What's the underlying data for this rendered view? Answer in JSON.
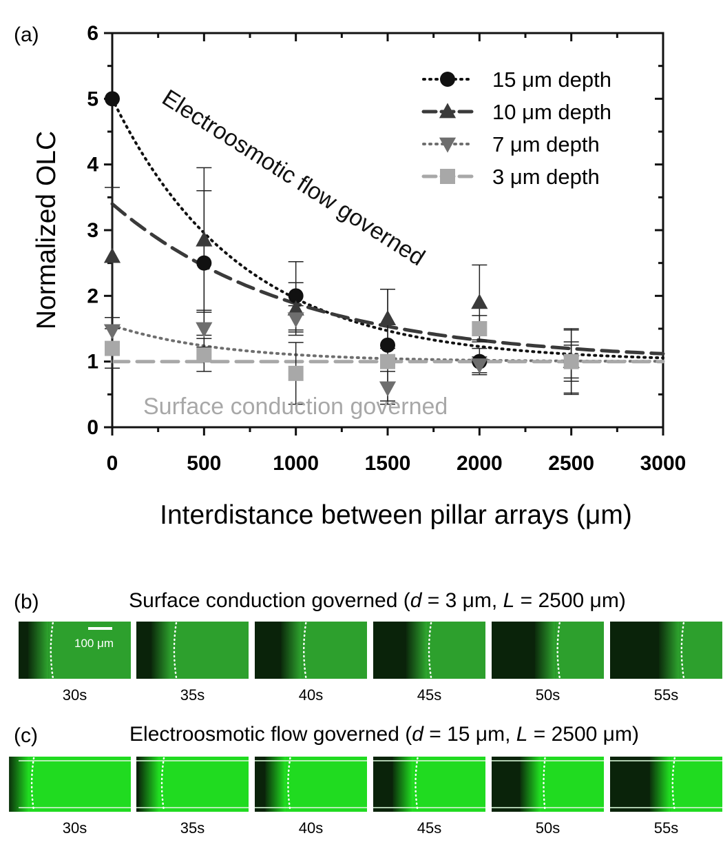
{
  "panel_a": {
    "label": "(a)",
    "chart_data": {
      "type": "scatter",
      "xlabel": "Interdistance between pillar arrays (μm)",
      "ylabel": "Normalized OLC",
      "xlim": [
        0,
        3000
      ],
      "ylim": [
        0,
        6
      ],
      "x_ticks": [
        0,
        500,
        1000,
        1500,
        2000,
        2500,
        3000
      ],
      "y_ticks": [
        0,
        1,
        2,
        3,
        4,
        5,
        6
      ],
      "grid": false,
      "legend_position": "top-right",
      "series": [
        {
          "name": "15 μm depth",
          "marker": "circle",
          "color": "#111111",
          "line_style": "dotted",
          "x": [
            0,
            500,
            1000,
            1500,
            2000,
            2500
          ],
          "y": [
            5.0,
            2.5,
            2.0,
            1.25,
            1.0,
            1.0
          ],
          "error": [
            0,
            1.1,
            0.52,
            0.85,
            0.2,
            0.5
          ]
        },
        {
          "name": "10 μm depth",
          "marker": "triangle-up",
          "color": "#3a3a3a",
          "line_style": "dashed",
          "x": [
            0,
            500,
            1000,
            1500,
            2000,
            2500
          ],
          "y": [
            2.6,
            2.85,
            1.8,
            1.65,
            1.9,
            1.0
          ],
          "error": [
            1.05,
            1.1,
            0.4,
            0.45,
            0.57,
            0.48
          ]
        },
        {
          "name": "7 μm depth",
          "marker": "triangle-down",
          "color": "#6e6e6e",
          "line_style": "dotted",
          "x": [
            0,
            500,
            1000,
            1500,
            2000,
            2500
          ],
          "y": [
            1.47,
            1.5,
            1.65,
            0.6,
            0.95,
            1.0
          ],
          "error": [
            0.2,
            0.28,
            0.2,
            0.25,
            0.12,
            0.3
          ]
        },
        {
          "name": "3 μm depth",
          "marker": "square",
          "color": "#a8a8a8",
          "line_style": "dashed",
          "x": [
            0,
            500,
            1000,
            1500,
            2000,
            2500
          ],
          "y": [
            1.2,
            1.1,
            0.82,
            1.0,
            1.5,
            1.0
          ],
          "error": [
            0.3,
            0.25,
            0.47,
            0.1,
            0.2,
            0.25
          ]
        }
      ],
      "fit_curves": [
        {
          "series": "15 μm depth",
          "model": "1 + A*exp(-x/tau)",
          "A": 4.0,
          "tau": 700
        },
        {
          "series": "10 μm depth",
          "model": "1 + A*exp(-x/tau)",
          "A": 2.4,
          "tau": 1000
        },
        {
          "series": "7 μm depth",
          "model": "1 + A*exp(-x/tau)",
          "A": 0.55,
          "tau": 600
        },
        {
          "series": "3 μm depth",
          "model": "constant",
          "value": 1.0
        }
      ],
      "annotations": [
        {
          "text": "Electroosmotic flow governed"
        },
        {
          "text": "Surface conduction governed"
        }
      ]
    }
  },
  "panel_b": {
    "label": "(b)",
    "title_pre": "Surface conduction governed (",
    "title_post": ")",
    "params": [
      {
        "var": "d",
        "value": " = 3 μm"
      },
      {
        "var": "L",
        "value": " = 2500 μm"
      }
    ],
    "scale_bar": "100 μm",
    "frames": [
      "30s",
      "35s",
      "40s",
      "45s",
      "50s",
      "55s"
    ],
    "front_position": [
      0.33,
      0.38,
      0.48,
      0.54,
      0.63,
      0.68
    ]
  },
  "panel_c": {
    "label": "(c)",
    "title_pre": "Electroosmotic flow governed (",
    "title_post": ")",
    "params": [
      {
        "var": "d",
        "value": " = 15 μm"
      },
      {
        "var": "L",
        "value": " = 2500 μm"
      }
    ],
    "frames": [
      "30s",
      "35s",
      "40s",
      "45s",
      "50s",
      "55s"
    ],
    "front_position": [
      0.16,
      0.27,
      0.34,
      0.42,
      0.5,
      0.6
    ]
  },
  "colors": {
    "channel_dark": "#0b2a0b",
    "channel_bright_b": "#2fa82f",
    "channel_bright_c": "#22e622"
  }
}
